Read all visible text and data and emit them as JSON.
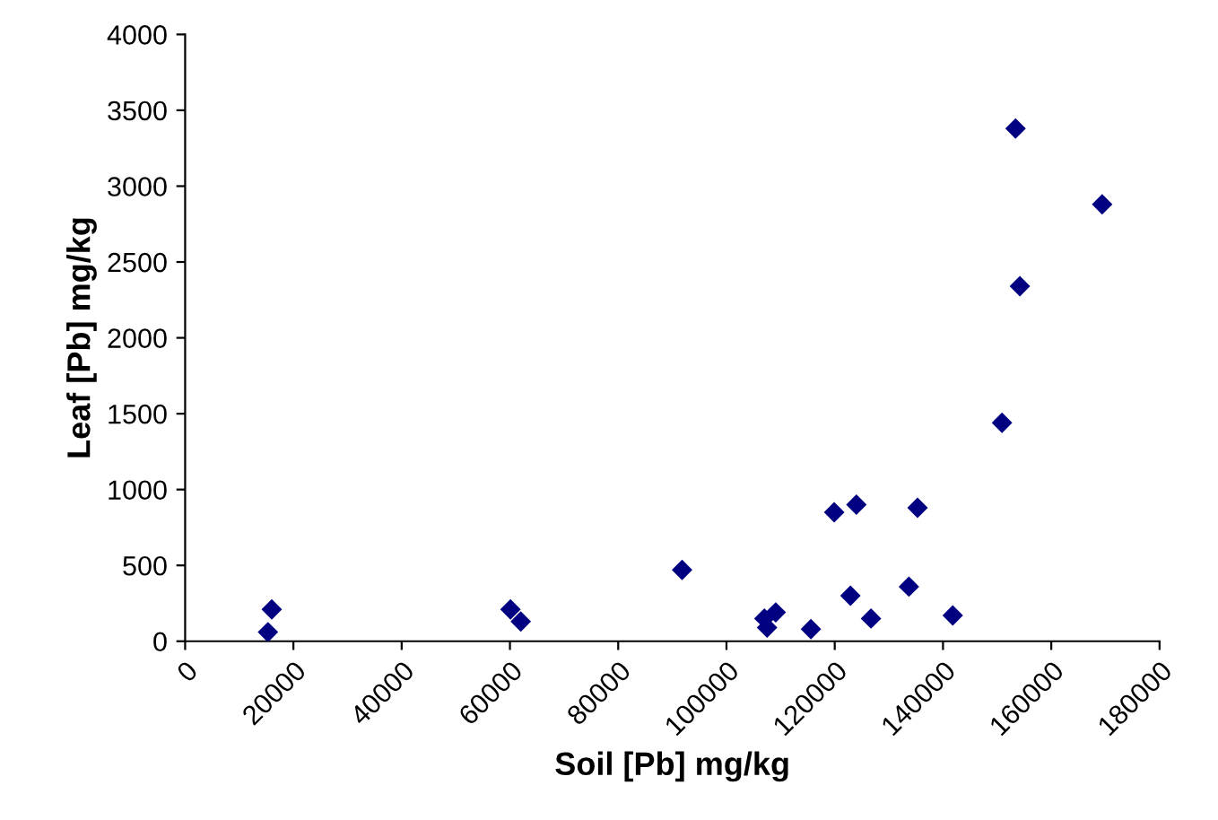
{
  "chart_data": {
    "type": "scatter",
    "xlabel": "Soil [Pb] mg/kg",
    "ylabel": "Leaf [Pb] mg/kg",
    "x": [
      15300,
      16000,
      60100,
      62000,
      91800,
      107000,
      107500,
      109100,
      115600,
      119900,
      124000,
      122900,
      126700,
      133700,
      135300,
      141800,
      150900,
      153400,
      169400,
      154200
    ],
    "series": [
      {
        "color": "#000080",
        "values": [
          60,
          210,
          210,
          130,
          470,
          150,
          90,
          190,
          80,
          850,
          900,
          300,
          150,
          360,
          880,
          170,
          1440,
          3380,
          2880,
          2340
        ]
      }
    ],
    "marker": "diamond",
    "grid": false,
    "legend": false,
    "xlim": [
      0,
      180000
    ],
    "xticks": [
      0,
      20000,
      40000,
      60000,
      80000,
      100000,
      120000,
      140000,
      160000,
      180000
    ],
    "ylim": [
      0,
      4000
    ],
    "yticks": [
      0,
      500,
      1000,
      1500,
      2000,
      2500,
      3000,
      3500,
      4000
    ]
  }
}
